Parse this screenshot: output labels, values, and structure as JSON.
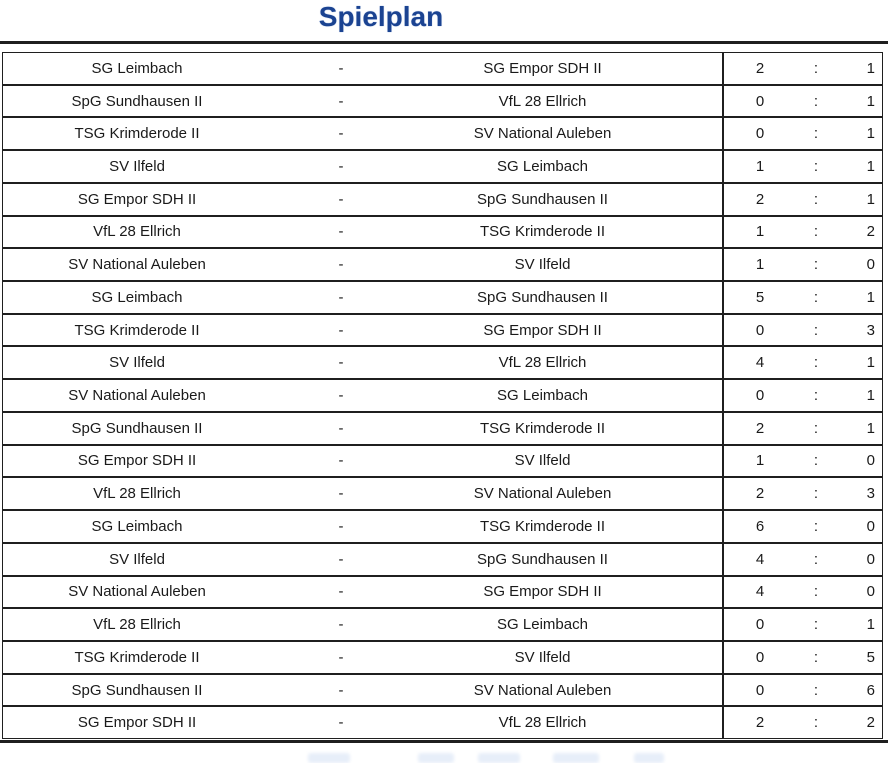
{
  "title": "Spielplan",
  "colors": {
    "title_blue": "#1b4391",
    "line": "#1f1f1f",
    "text": "#1a1a1a"
  },
  "table": {
    "separator": "-",
    "score_separator": ":",
    "matches": [
      {
        "home": "SG Leimbach",
        "away": "SG Empor SDH II",
        "home_score": "2",
        "away_score": "1"
      },
      {
        "home": "SpG Sundhausen II",
        "away": "VfL 28 Ellrich",
        "home_score": "0",
        "away_score": "1"
      },
      {
        "home": "TSG Krimderode II",
        "away": "SV National Auleben",
        "home_score": "0",
        "away_score": "1"
      },
      {
        "home": "SV Ilfeld",
        "away": "SG Leimbach",
        "home_score": "1",
        "away_score": "1"
      },
      {
        "home": "SG Empor SDH II",
        "away": "SpG Sundhausen II",
        "home_score": "2",
        "away_score": "1"
      },
      {
        "home": "VfL 28 Ellrich",
        "away": "TSG Krimderode II",
        "home_score": "1",
        "away_score": "2"
      },
      {
        "home": "SV National Auleben",
        "away": "SV Ilfeld",
        "home_score": "1",
        "away_score": "0"
      },
      {
        "home": "SG Leimbach",
        "away": "SpG Sundhausen II",
        "home_score": "5",
        "away_score": "1"
      },
      {
        "home": "TSG Krimderode II",
        "away": "SG Empor SDH II",
        "home_score": "0",
        "away_score": "3"
      },
      {
        "home": "SV Ilfeld",
        "away": "VfL 28 Ellrich",
        "home_score": "4",
        "away_score": "1"
      },
      {
        "home": "SV National Auleben",
        "away": "SG Leimbach",
        "home_score": "0",
        "away_score": "1"
      },
      {
        "home": "SpG Sundhausen II",
        "away": "TSG Krimderode II",
        "home_score": "2",
        "away_score": "1"
      },
      {
        "home": "SG Empor SDH II",
        "away": "SV Ilfeld",
        "home_score": "1",
        "away_score": "0"
      },
      {
        "home": "VfL 28 Ellrich",
        "away": "SV National Auleben",
        "home_score": "2",
        "away_score": "3"
      },
      {
        "home": "SG Leimbach",
        "away": "TSG Krimderode II",
        "home_score": "6",
        "away_score": "0"
      },
      {
        "home": "SV Ilfeld",
        "away": "SpG Sundhausen II",
        "home_score": "4",
        "away_score": "0"
      },
      {
        "home": "SV National Auleben",
        "away": "SG Empor SDH II",
        "home_score": "4",
        "away_score": "0"
      },
      {
        "home": "VfL 28 Ellrich",
        "away": "SG Leimbach",
        "home_score": "0",
        "away_score": "1"
      },
      {
        "home": "TSG Krimderode II",
        "away": "SV Ilfeld",
        "home_score": "0",
        "away_score": "5"
      },
      {
        "home": "SpG Sundhausen II",
        "away": "SV National Auleben",
        "home_score": "0",
        "away_score": "6"
      },
      {
        "home": "SG Empor SDH II",
        "away": "VfL 28 Ellrich",
        "home_score": "2",
        "away_score": "2"
      }
    ]
  }
}
